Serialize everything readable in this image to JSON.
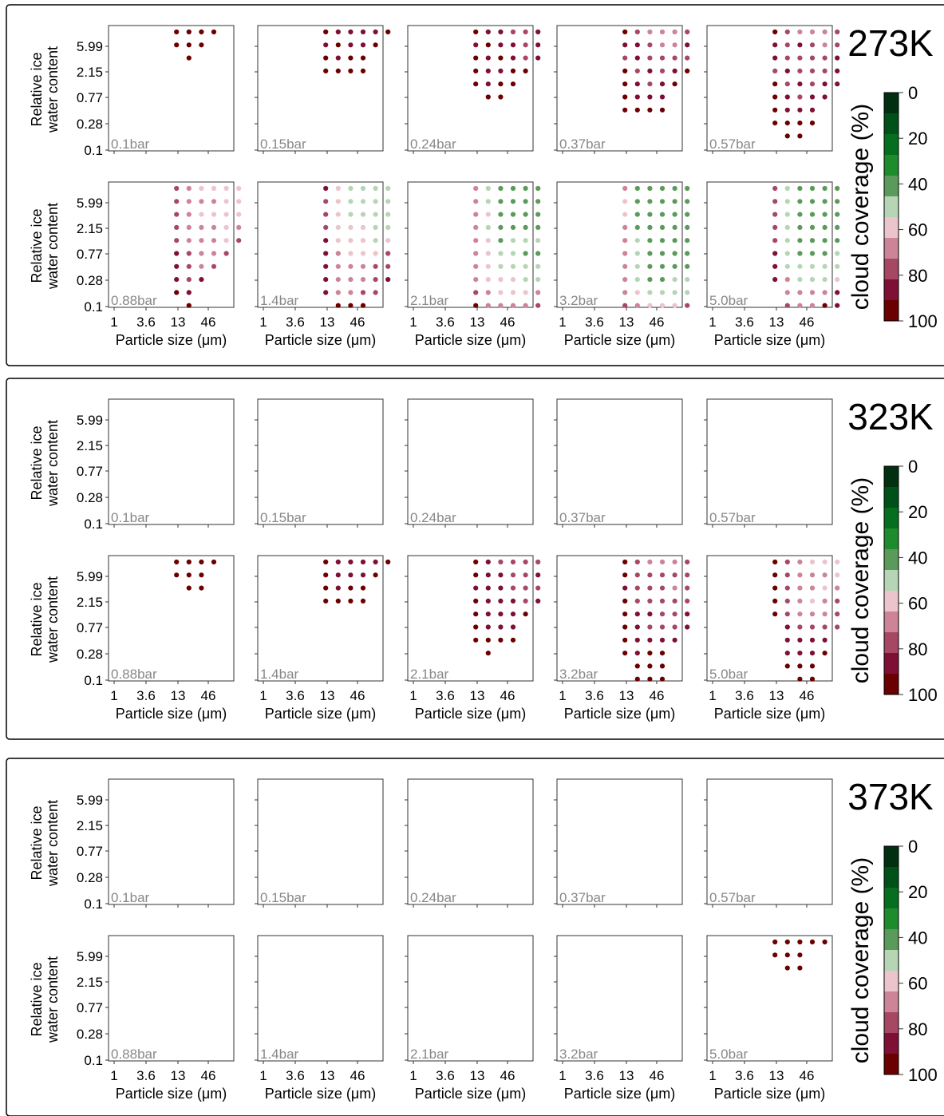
{
  "chart_data": {
    "type": "scatter",
    "description_axes": {
      "xlabel": "Particle size (μm)",
      "ylabel_line1": "Relative ice",
      "ylabel_line2": "water content",
      "xticks": [
        "1",
        "3.6",
        "13",
        "46"
      ],
      "yticks": [
        "5.99",
        "2.15",
        "0.77",
        "0.28",
        "0.1"
      ]
    },
    "grid": {
      "columns": 8,
      "rows": 10,
      "column_0_is_smallest_particle_size": true,
      "row_0_is_top_highest_water_content": true
    },
    "colorbar": {
      "title": "cloud coverage (%)",
      "ticks": [
        "0",
        "20",
        "40",
        "60",
        "80",
        "100"
      ],
      "bins": [
        "#00300f",
        "#00501a",
        "#056e1f",
        "#1e8c2c",
        "#5a9a5a",
        "#b5d5b5",
        "#ecc4cc",
        "#cd8497",
        "#a64864",
        "#7d1034",
        "#6b0000"
      ]
    },
    "pressures": [
      "0.1bar",
      "0.15bar",
      "0.24bar",
      "0.37bar",
      "0.57bar",
      "0.88bar",
      "1.4bar",
      "2.1bar",
      "3.2bar",
      "5.0bar"
    ],
    "groups": [
      {
        "temperature": "273K",
        "panels": [
          {
            "pressure": "0.1bar",
            "rows": [
              "..9999..",
              "..999...",
              "...9....",
              "........",
              "........",
              "........",
              "........",
              "........",
              "........",
              "........"
            ]
          },
          {
            "pressure": "0.15bar",
            "rows": [
              "..988889",
              "..89889.",
              "..9899..",
              "..9999..",
              "........",
              "........",
              "........",
              "........",
              "........",
              "........"
            ]
          },
          {
            "pressure": "0.24bar",
            "rows": [
              "..988778",
              "..898878",
              "..989878",
              "..98899.",
              "..9899..",
              "...99...",
              "........",
              "........",
              "........",
              "........"
            ]
          },
          {
            "pressure": "0.37bar",
            "rows": [
              "..976667",
              "..887668",
              "..787777",
              "..978789",
              "..98789.",
              "..9888..",
              "..9999..",
              "........",
              "........",
              "........"
            ]
          },
          {
            "pressure": "0.57bar",
            "rows": [
              "..976667",
              "..878767",
              "..877778",
              "..787778",
              "..978788",
              "..98788.",
              "..9888..",
              "..9999..",
              "...99...",
              "........"
            ]
          },
          {
            "pressure": "0.88bar",
            "rows": [
              "..765555",
              "..766655",
              "..765555",
              "..766656",
              "..766657",
              "..87667.",
              "..8767..",
              "..878...",
              "..98....",
              "...9...."
            ]
          },
          {
            "pressure": "1.4bar",
            "rows": [
              "..854444",
              "..754444",
              "..754444",
              "..755544",
              "..855545",
              "..865557",
              "..866677",
              "..866678",
              "..86677.",
              "...999.."
            ]
          },
          {
            "pressure": "2.1bar",
            "rows": [
              "..643333",
              "..643333",
              "..653333",
              "..643333",
              "..653444",
              "..654433",
              "..654444",
              "..655544",
              "..765556",
              "..966667"
            ]
          },
          {
            "pressure": "3.2bar",
            "rows": [
              "..633333",
              "..533333",
              "..533333",
              "..633333",
              "..643333",
              "..643333",
              "..643333",
              "..643344",
              "..654444",
              "..765557"
            ]
          },
          {
            "pressure": "5.0bar",
            "rows": [
              "..743333",
              "..743333",
              "..743333",
              "..743333",
              "..743333",
              "..843334",
              "..844444",
              "..864445",
              "...66668",
              "...76698"
            ]
          }
        ]
      },
      {
        "temperature": "323K",
        "panels": [
          {
            "pressure": "0.1bar",
            "rows": [
              "........",
              "........",
              "........",
              "........",
              "........",
              "........",
              "........",
              "........",
              "........",
              "........"
            ]
          },
          {
            "pressure": "0.15bar",
            "rows": [
              "........",
              "........",
              "........",
              "........",
              "........",
              "........",
              "........",
              "........",
              "........",
              "........"
            ]
          },
          {
            "pressure": "0.24bar",
            "rows": [
              "........",
              "........",
              "........",
              "........",
              "........",
              "........",
              "........",
              "........",
              "........",
              "........"
            ]
          },
          {
            "pressure": "0.37bar",
            "rows": [
              "........",
              "........",
              "........",
              "........",
              "........",
              "........",
              "........",
              "........",
              "........",
              "........"
            ]
          },
          {
            "pressure": "0.57bar",
            "rows": [
              "........",
              "........",
              "........",
              "........",
              "........",
              "........",
              "........",
              "........",
              "........",
              "........"
            ]
          },
          {
            "pressure": "0.88bar",
            "rows": [
              "..9999..",
              "..999...",
              "...99...",
              "........",
              "........",
              "........",
              "........",
              "........",
              "........",
              "........"
            ]
          },
          {
            "pressure": "1.4bar",
            "rows": [
              "..988889",
              "..98889.",
              "..9899..",
              "..9999..",
              "........",
              "........",
              "........",
              "........",
              "........",
              "........"
            ]
          },
          {
            "pressure": "2.1bar",
            "rows": [
              "..987777",
              "..988778",
              "..888777",
              "..988878",
              "..98889.",
              "..9888..",
              "..9999..",
              "...9....",
              "........",
              "........"
            ]
          },
          {
            "pressure": "3.2bar",
            "rows": [
              "..976667",
              "..977777",
              "..877767",
              "..977777",
              "..988778",
              "..987778",
              "..98888.",
              "..9899..",
              "...999..",
              "...999.."
            ]
          },
          {
            "pressure": "5.0bar",
            "rows": [
              "..976555",
              "..976665",
              "..976656",
              "..976567",
              "..976667",
              "...87777",
              "...8888.",
              "...8889.",
              "...999..",
              "....99.."
            ]
          }
        ]
      },
      {
        "temperature": "373K",
        "panels": [
          {
            "pressure": "0.1bar",
            "rows": [
              "........",
              "........",
              "........",
              "........",
              "........",
              "........",
              "........",
              "........",
              "........",
              "........"
            ]
          },
          {
            "pressure": "0.15bar",
            "rows": [
              "........",
              "........",
              "........",
              "........",
              "........",
              "........",
              "........",
              "........",
              "........",
              "........"
            ]
          },
          {
            "pressure": "0.24bar",
            "rows": [
              "........",
              "........",
              "........",
              "........",
              "........",
              "........",
              "........",
              "........",
              "........",
              "........"
            ]
          },
          {
            "pressure": "0.37bar",
            "rows": [
              "........",
              "........",
              "........",
              "........",
              "........",
              "........",
              "........",
              "........",
              "........",
              "........"
            ]
          },
          {
            "pressure": "0.57bar",
            "rows": [
              "........",
              "........",
              "........",
              "........",
              "........",
              "........",
              "........",
              "........",
              "........",
              "........"
            ]
          },
          {
            "pressure": "0.88bar",
            "rows": [
              "........",
              "........",
              "........",
              "........",
              "........",
              "........",
              "........",
              "........",
              "........",
              "........"
            ]
          },
          {
            "pressure": "1.4bar",
            "rows": [
              "........",
              "........",
              "........",
              "........",
              "........",
              "........",
              "........",
              "........",
              "........",
              "........"
            ]
          },
          {
            "pressure": "2.1bar",
            "rows": [
              "........",
              "........",
              "........",
              "........",
              "........",
              "........",
              "........",
              "........",
              "........",
              "........"
            ]
          },
          {
            "pressure": "3.2bar",
            "rows": [
              "........",
              "........",
              "........",
              "........",
              "........",
              "........",
              "........",
              "........",
              "........",
              "........"
            ]
          },
          {
            "pressure": "5.0bar",
            "rows": [
              "..99999.",
              "..999...",
              "...99...",
              "........",
              "........",
              "........",
              "........",
              "........",
              "........",
              "........"
            ]
          }
        ]
      }
    ]
  }
}
